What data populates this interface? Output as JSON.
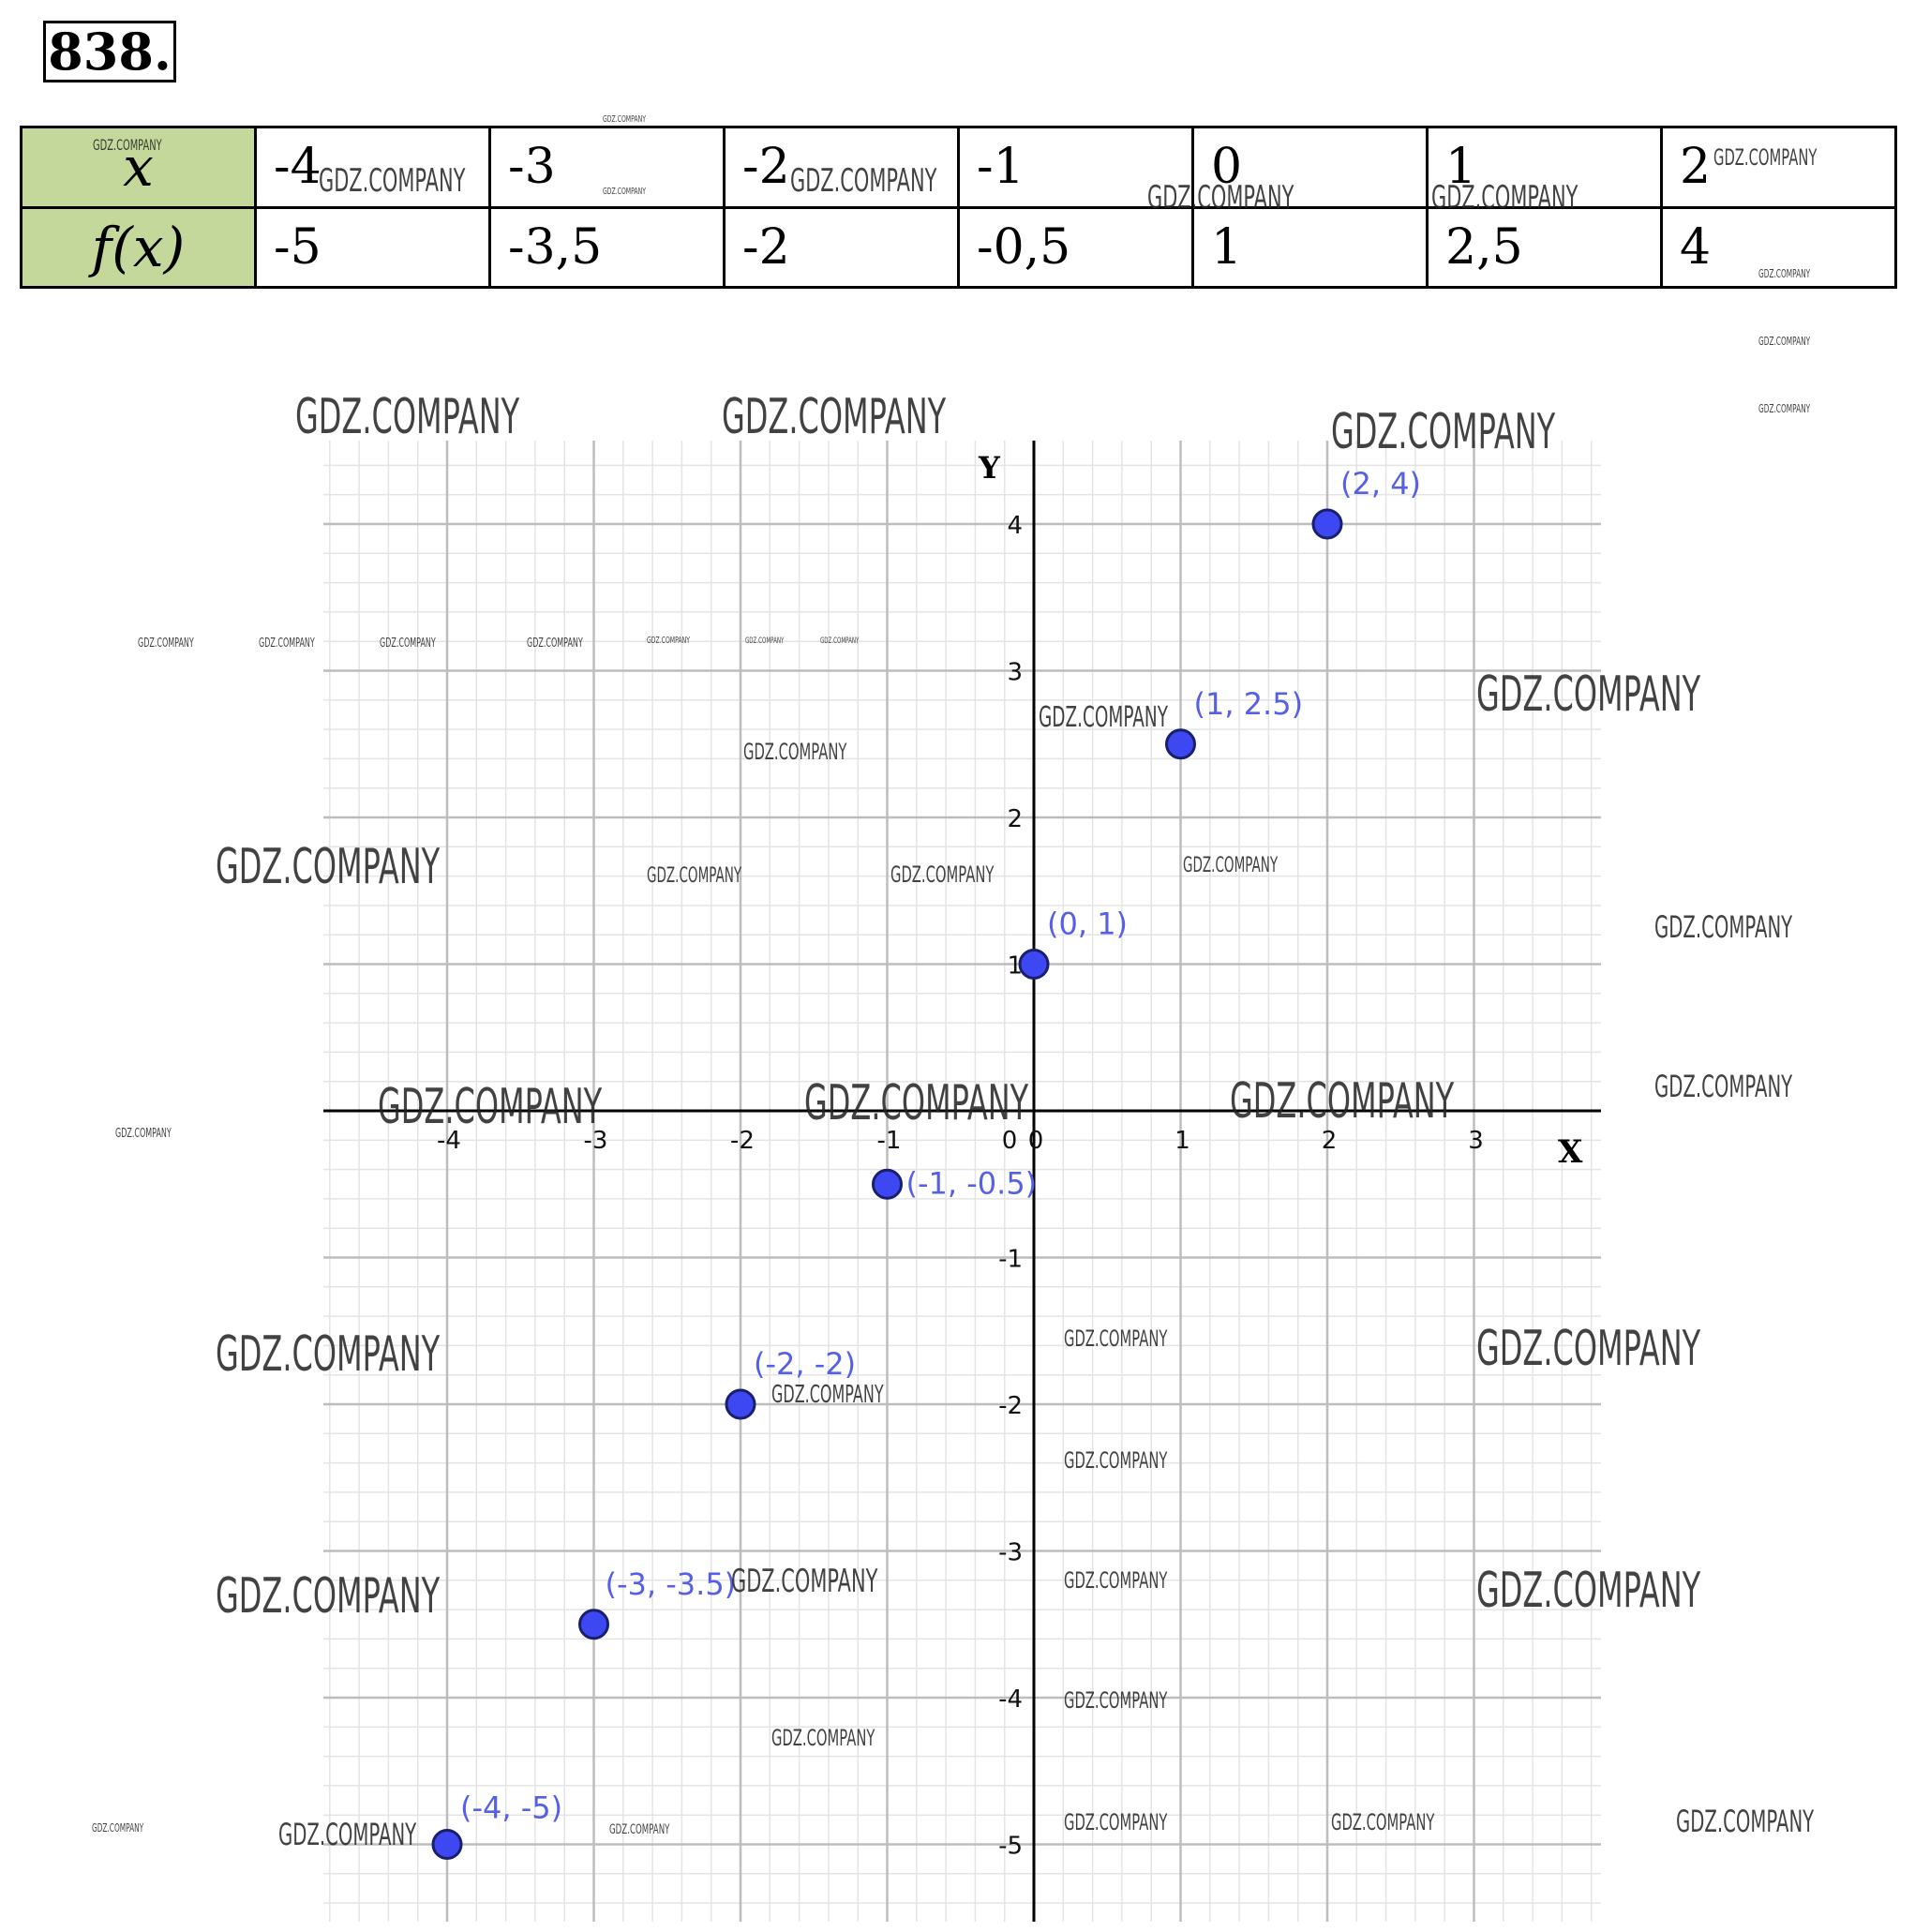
{
  "problem": {
    "number": "838."
  },
  "table": {
    "row_headers": [
      "x",
      "f(x)"
    ],
    "x_values": [
      "-4",
      "-3",
      "-2",
      "-1",
      "0",
      "1",
      "2"
    ],
    "fx_values": [
      "-5",
      "-3,5",
      "-2",
      "-0,5",
      "1",
      "2,5",
      "4"
    ]
  },
  "chart_data": {
    "type": "scatter",
    "xlabel": "X",
    "ylabel": "Y",
    "xlim": [
      -4.85,
      3.85
    ],
    "ylim": [
      -5.5,
      4.55
    ],
    "x_ticks": [
      -4,
      -3,
      -2,
      -1,
      0,
      1,
      2,
      3
    ],
    "y_ticks": [
      -5,
      -4,
      -3,
      -2,
      -1,
      1,
      2,
      3,
      4
    ],
    "minor_step": 0.2,
    "grid": true,
    "points": [
      {
        "x": -4,
        "y": -5,
        "label": "(-4, -5)"
      },
      {
        "x": -3,
        "y": -3.5,
        "label": "(-3, -3.5)"
      },
      {
        "x": -2,
        "y": -2,
        "label": "(-2, -2)"
      },
      {
        "x": -1,
        "y": -0.5,
        "label": "(-1, -0.5)"
      },
      {
        "x": 0,
        "y": 1,
        "label": "(0, 1)"
      },
      {
        "x": 1,
        "y": 2.5,
        "label": "(1, 2.5)"
      },
      {
        "x": 2,
        "y": 4,
        "label": "(2, 4)"
      }
    ],
    "colors": {
      "point": "#3d48f2",
      "label": "#5560e6",
      "grid_major": "#bdbdbd",
      "grid_minor": "#e4e4e4",
      "axis": "#000000"
    }
  },
  "watermark": {
    "text": "GDZ.COMPANY"
  }
}
